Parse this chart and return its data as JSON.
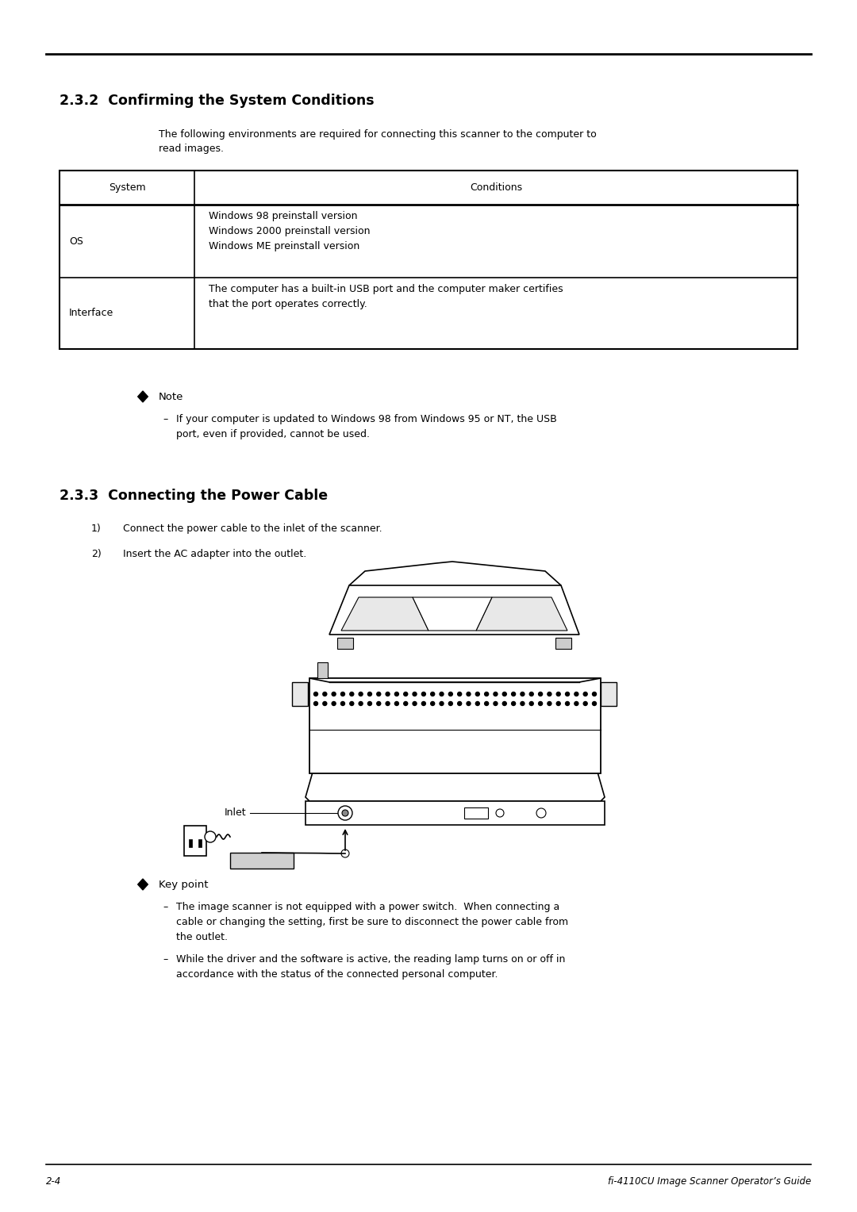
{
  "bg_color": "#ffffff",
  "page_width": 10.8,
  "page_height": 15.28,
  "font_size_title": 12.5,
  "font_size_body": 9.0,
  "font_size_footer": 8.5,
  "font_size_note_head": 9.5,
  "section1_title": "2.3.2  Confirming the System Conditions",
  "intro_text": "The following environments are required for connecting this scanner to the computer to\nread images.",
  "table_header1": "System",
  "table_header2": "Conditions",
  "table_row1_col1": "OS",
  "table_row1_col2": "Windows 98 preinstall version\nWindows 2000 preinstall version\nWindows ME preinstall version",
  "table_row2_col1": "Interface",
  "table_row2_col2": "The computer has a built-in USB port and the computer maker certifies\nthat the port operates correctly.",
  "note_label": "Note",
  "note_body": "If your computer is updated to Windows 98 from Windows 95 or NT, the USB\nport, even if provided, cannot be used.",
  "section2_title": "2.3.3  Connecting the Power Cable",
  "step1_num": "1)",
  "step1_text": "Connect the power cable to the inlet of the scanner.",
  "step2_num": "2)",
  "step2_text": "Insert the AC adapter into the outlet.",
  "inlet_label": "Inlet",
  "kp_label": "Key point",
  "kp_body1": "The image scanner is not equipped with a power switch.  When connecting a\ncable or changing the setting, first be sure to disconnect the power cable from\nthe outlet.",
  "kp_body2": "While the driver and the software is active, the reading lamp turns on or off in\naccordance with the status of the connected personal computer.",
  "footer_left": "2-4",
  "footer_right": "fi-4110CU Image Scanner Operator’s Guide"
}
